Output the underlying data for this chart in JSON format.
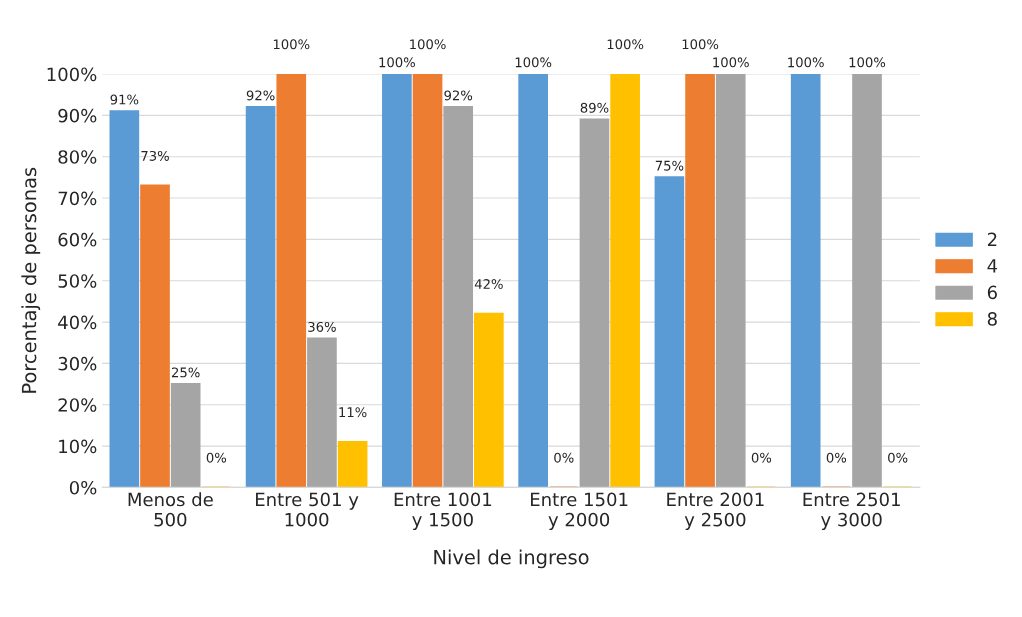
{
  "chart_data": {
    "type": "bar",
    "xlabel": "Nivel de ingreso",
    "ylabel": "Porcentaje de personas",
    "categories": [
      "Menos de\n500",
      "Entre 501 y\n1000",
      "Entre 1001\ny 1500",
      "Entre 1501\ny 2000",
      "Entre 2001\ny 2500",
      "Entre 2501\ny 3000"
    ],
    "series": [
      {
        "name": "2",
        "color": "#5b9bd5",
        "values": [
          91,
          92,
          100,
          100,
          75,
          100
        ],
        "value_labels": [
          "91%",
          "92%",
          "100%",
          "100%",
          "75%",
          "100%"
        ]
      },
      {
        "name": "4",
        "color": "#ed7d31",
        "values": [
          73,
          100,
          100,
          0,
          100,
          0
        ],
        "value_labels": [
          "73%",
          "100%",
          "100%",
          "0%",
          "100%",
          "0%"
        ]
      },
      {
        "name": "6",
        "color": "#a5a5a5",
        "values": [
          25,
          36,
          92,
          89,
          100,
          100
        ],
        "value_labels": [
          "25%",
          "36%",
          "92%",
          "89%",
          "100%",
          "100%"
        ]
      },
      {
        "name": "8",
        "color": "#ffc000",
        "values": [
          0,
          11,
          42,
          100,
          0,
          0
        ],
        "value_labels": [
          "0%",
          "11%",
          "42%",
          "100%",
          "0%",
          "0%"
        ]
      }
    ],
    "ylim": [
      0,
      100
    ],
    "yticks": [
      {
        "value": 0,
        "label": "0%"
      },
      {
        "value": 10,
        "label": "10%"
      },
      {
        "value": 20,
        "label": "20%"
      },
      {
        "value": 30,
        "label": "30%"
      },
      {
        "value": 40,
        "label": "40%"
      },
      {
        "value": 50,
        "label": "50%"
      },
      {
        "value": 60,
        "label": "60%"
      },
      {
        "value": 70,
        "label": "70%"
      },
      {
        "value": 80,
        "label": "80%"
      },
      {
        "value": 90,
        "label": "90%"
      },
      {
        "value": 100,
        "label": "100%"
      }
    ],
    "grid": "y",
    "legend": "right"
  }
}
